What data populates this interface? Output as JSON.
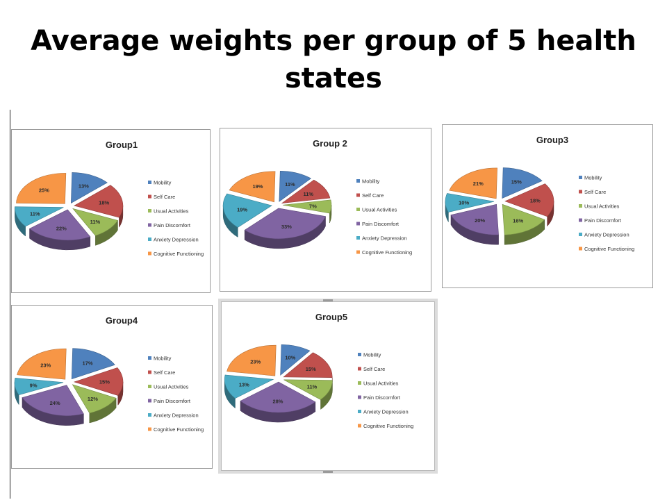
{
  "slide": {
    "title": "Average weights per group of 5 health states"
  },
  "legend_labels": [
    "Mobility",
    "Self Care",
    "Usual Activities",
    "Pain Discomfort",
    "Anxiety Depression",
    "Cognitive Functioning"
  ],
  "colors": {
    "Mobility": "#4f81bd",
    "Self Care": "#c0504d",
    "Usual Activities": "#9bbb59",
    "Pain Discomfort": "#8064a2",
    "Anxiety Depression": "#4bacc6",
    "Cognitive Functioning": "#f79646"
  },
  "chart_data": [
    {
      "type": "pie",
      "title": "Group1",
      "categories": [
        "Mobility",
        "Self Care",
        "Usual Activities",
        "Pain Discomfort",
        "Anxiety Depression",
        "Cognitive Functioning"
      ],
      "values": [
        13,
        18,
        11,
        22,
        11,
        25
      ],
      "legend": "right",
      "style": "exploded-3d"
    },
    {
      "type": "pie",
      "title": "Group 2",
      "categories": [
        "Mobility",
        "Self Care",
        "Usual Activities",
        "Pain Discomfort",
        "Anxiety Depression",
        "Cognitive Functioning"
      ],
      "values": [
        11,
        11,
        7,
        33,
        19,
        19
      ],
      "legend": "right",
      "style": "exploded-3d"
    },
    {
      "type": "pie",
      "title": "Group3",
      "categories": [
        "Mobility",
        "Self Care",
        "Usual Activities",
        "Pain Discomfort",
        "Anxiety Depression",
        "Cognitive Functioning"
      ],
      "values": [
        15,
        18,
        16,
        20,
        10,
        21
      ],
      "legend": "right",
      "style": "exploded-3d"
    },
    {
      "type": "pie",
      "title": "Group4",
      "categories": [
        "Mobility",
        "Self Care",
        "Usual Activities",
        "Pain Discomfort",
        "Anxiety Depression",
        "Cognitive Functioning"
      ],
      "values": [
        17,
        15,
        12,
        24,
        9,
        23
      ],
      "legend": "right",
      "style": "exploded-3d"
    },
    {
      "type": "pie",
      "title": "Group5",
      "categories": [
        "Mobility",
        "Self Care",
        "Usual Activities",
        "Pain Discomfort",
        "Anxiety Depression",
        "Cognitive Functioning"
      ],
      "values": [
        10,
        15,
        11,
        28,
        13,
        23
      ],
      "legend": "right",
      "style": "exploded-3d"
    }
  ]
}
